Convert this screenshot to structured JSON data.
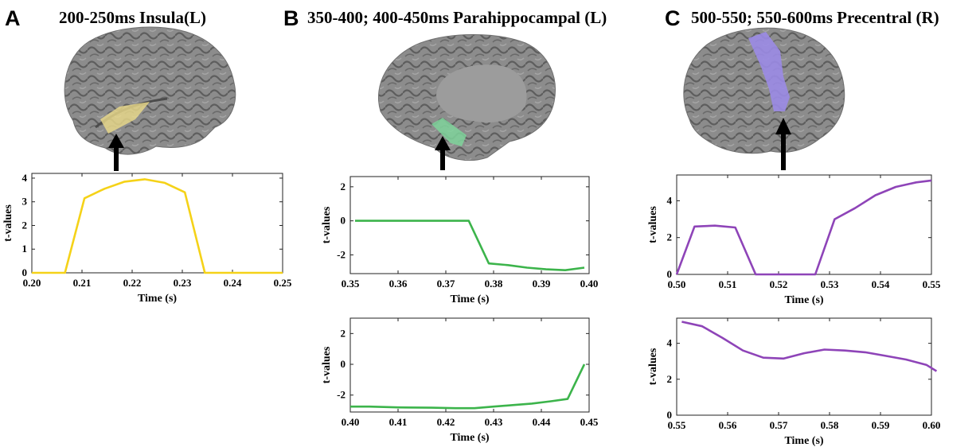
{
  "panels": [
    {
      "letter": "A",
      "title": "200-250ms Insula(L)",
      "region_color": "#e9d98a",
      "arrow_color": "#000000"
    },
    {
      "letter": "B",
      "title": "350-400; 400-450ms Parahippocampal (L)",
      "region_color": "#7fd39b",
      "arrow_color": "#000000"
    },
    {
      "letter": "C",
      "title": "500-550; 550-600ms Precentral (R)",
      "region_color": "#9b8be6",
      "arrow_color": "#000000"
    }
  ],
  "chart_data": [
    {
      "id": "A1",
      "type": "line",
      "color": "#f5d218",
      "xlabel": "Time (s)",
      "ylabel": "t-values",
      "xlim": [
        0.2,
        0.25
      ],
      "ylim": [
        0,
        4.2
      ],
      "xticks": [
        "0.20",
        "0.21",
        "0.22",
        "0.23",
        "0.24",
        "0.25"
      ],
      "yticks": [
        "0",
        "1",
        "2",
        "3",
        "4"
      ],
      "x": [
        0.2,
        0.2066,
        0.2105,
        0.2145,
        0.2185,
        0.2225,
        0.2265,
        0.2305,
        0.2345,
        0.25
      ],
      "y": [
        0,
        0,
        3.15,
        3.55,
        3.85,
        3.95,
        3.8,
        3.4,
        0,
        0
      ]
    },
    {
      "id": "B1",
      "type": "line",
      "color": "#3cb44b",
      "xlabel": "Time (s)",
      "ylabel": "t-values",
      "xlim": [
        0.35,
        0.4
      ],
      "ylim": [
        -3.1,
        2.6
      ],
      "xticks": [
        "0.35",
        "0.36",
        "0.37",
        "0.38",
        "0.39",
        "0.40"
      ],
      "yticks": [
        "-2",
        "0",
        "2"
      ],
      "x": [
        0.351,
        0.3748,
        0.379,
        0.383,
        0.387,
        0.391,
        0.395,
        0.399
      ],
      "y": [
        0,
        0,
        -2.5,
        -2.6,
        -2.75,
        -2.85,
        -2.9,
        -2.75
      ]
    },
    {
      "id": "B2",
      "type": "line",
      "color": "#3cb44b",
      "xlabel": "Time (s)",
      "ylabel": "t-values",
      "xlim": [
        0.4,
        0.45
      ],
      "ylim": [
        -3.1,
        3.0
      ],
      "xticks": [
        "0.40",
        "0.41",
        "0.42",
        "0.43",
        "0.44",
        "0.45"
      ],
      "yticks": [
        "-2",
        "0",
        "2"
      ],
      "x": [
        0.4,
        0.404,
        0.41,
        0.417,
        0.422,
        0.426,
        0.43,
        0.434,
        0.438,
        0.442,
        0.4455,
        0.449
      ],
      "y": [
        -2.75,
        -2.75,
        -2.8,
        -2.82,
        -2.85,
        -2.85,
        -2.75,
        -2.65,
        -2.55,
        -2.4,
        -2.25,
        0
      ]
    },
    {
      "id": "C1",
      "type": "line",
      "color": "#8e44b8",
      "xlabel": "Time (s)",
      "ylabel": "t-values",
      "xlim": [
        0.5,
        0.55
      ],
      "ylim": [
        0,
        5.4
      ],
      "xticks": [
        "0.50",
        "0.51",
        "0.52",
        "0.53",
        "0.54",
        "0.55"
      ],
      "yticks": [
        "0",
        "2",
        "4"
      ],
      "x": [
        0.5,
        0.5035,
        0.5075,
        0.5115,
        0.5155,
        0.5195,
        0.5235,
        0.5272,
        0.531,
        0.535,
        0.539,
        0.543,
        0.547,
        0.55
      ],
      "y": [
        0,
        2.6,
        2.65,
        2.55,
        0,
        0,
        0,
        0,
        3.0,
        3.6,
        4.3,
        4.75,
        5.0,
        5.1
      ]
    },
    {
      "id": "C2",
      "type": "line",
      "color": "#8e44b8",
      "xlabel": "Time (s)",
      "ylabel": "t-values",
      "xlim": [
        0.55,
        0.6
      ],
      "ylim": [
        0,
        5.4
      ],
      "xticks": [
        "0.55",
        "0.56",
        "0.57",
        "0.58",
        "0.59",
        "0.60"
      ],
      "yticks": [
        "0",
        "2",
        "4"
      ],
      "x": [
        0.551,
        0.555,
        0.559,
        0.563,
        0.567,
        0.571,
        0.575,
        0.579,
        0.583,
        0.587,
        0.591,
        0.595,
        0.599,
        0.601
      ],
      "y": [
        5.2,
        4.95,
        4.3,
        3.6,
        3.2,
        3.15,
        3.45,
        3.65,
        3.6,
        3.5,
        3.3,
        3.1,
        2.8,
        2.45
      ]
    }
  ]
}
